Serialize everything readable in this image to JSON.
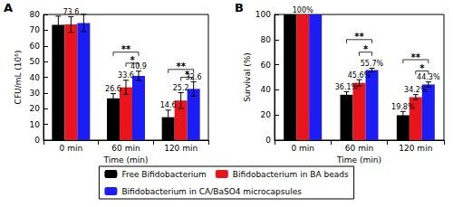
{
  "chart_data": [
    {
      "type": "bar",
      "panel_label": "A",
      "x_label": "Time (min)",
      "y_label": "CFU/mL (10⁶)",
      "categories": [
        "0 min",
        "60 min",
        "120 min"
      ],
      "ylim": [
        0,
        80
      ],
      "yticks": [
        0,
        10,
        20,
        30,
        40,
        50,
        60,
        70,
        80
      ],
      "grid": false,
      "legend": "bottom",
      "data_labels": true,
      "series": [
        {
          "name": "Free Bifidobacterium",
          "color": "#000000",
          "values": [
            73.4,
            26.6,
            14.6
          ],
          "errors": [
            5.5,
            3.0,
            4.5
          ],
          "value_labels": [
            null,
            "26.6",
            "14.6"
          ]
        },
        {
          "name": "Bifidobacterium in BA beads",
          "color": "#e8161c",
          "values": [
            73.6,
            33.6,
            25.2
          ],
          "errors": [
            5.0,
            4.5,
            5.0
          ],
          "value_labels": [
            "73.6",
            "33.6",
            "25.2"
          ]
        },
        {
          "name": "Bifidobacterium in CA/BaSO4 microcapsules",
          "color": "#1c1cf5",
          "values": [
            74.6,
            40.9,
            32.6
          ],
          "errors": [
            5.5,
            3.0,
            4.5
          ],
          "value_labels": [
            null,
            "40.9",
            "32.6"
          ]
        }
      ],
      "significance": [
        {
          "category": "60 min",
          "from": "Free Bifidobacterium",
          "to": "Bifidobacterium in CA/BaSO4 microcapsules",
          "y": 56,
          "text": "**"
        },
        {
          "category": "60 min",
          "from": "Bifidobacterium in BA beads",
          "to": "Bifidobacterium in CA/BaSO4 microcapsules",
          "y": 49,
          "text": "*"
        },
        {
          "category": "120 min",
          "from": "Free Bifidobacterium",
          "to": "Bifidobacterium in CA/BaSO4 microcapsules",
          "y": 45,
          "text": "**"
        },
        {
          "category": "120 min",
          "from": "Bifidobacterium in BA beads",
          "to": "Bifidobacterium in CA/BaSO4 microcapsules",
          "y": 40,
          "text": "*"
        }
      ]
    },
    {
      "type": "bar",
      "panel_label": "B",
      "x_label": "Time (min)",
      "y_label": "Survival (%)",
      "categories": [
        "0 min",
        "60 min",
        "120 min"
      ],
      "ylim": [
        0,
        100
      ],
      "yticks": [
        0,
        20,
        40,
        60,
        80,
        100
      ],
      "grid": false,
      "legend": "bottom",
      "data_labels": true,
      "series": [
        {
          "name": "Free Bifidobacterium",
          "color": "#000000",
          "values": [
            100,
            36.1,
            19.8
          ],
          "errors": [
            0,
            2.5,
            3.0
          ],
          "value_labels": [
            null,
            "36.1%",
            "19.8%"
          ]
        },
        {
          "name": "Bifidobacterium in BA beads",
          "color": "#e8161c",
          "values": [
            100,
            45.6,
            34.2
          ],
          "errors": [
            0,
            2.5,
            2.0
          ],
          "value_labels": [
            "100%",
            "45.6%",
            "34.2%"
          ]
        },
        {
          "name": "Bifidobacterium in CA/BaSO4 microcapsules",
          "color": "#1c1cf5",
          "values": [
            100,
            55.7,
            44.3
          ],
          "errors": [
            0,
            1.5,
            2.0
          ],
          "value_labels": [
            null,
            "55.7%",
            "44.3%"
          ]
        }
      ],
      "significance": [
        {
          "category": "60 min",
          "from": "Free Bifidobacterium",
          "to": "Bifidobacterium in CA/BaSO4 microcapsules",
          "y": 80,
          "text": "**"
        },
        {
          "category": "60 min",
          "from": "Bifidobacterium in BA beads",
          "to": "Bifidobacterium in CA/BaSO4 microcapsules",
          "y": 70,
          "text": "*"
        },
        {
          "category": "120 min",
          "from": "Free Bifidobacterium",
          "to": "Bifidobacterium in CA/BaSO4 microcapsules",
          "y": 64,
          "text": "**"
        },
        {
          "category": "120 min",
          "from": "Bifidobacterium in BA beads",
          "to": "Bifidobacterium in CA/BaSO4 microcapsules",
          "y": 55,
          "text": "*"
        }
      ]
    }
  ]
}
